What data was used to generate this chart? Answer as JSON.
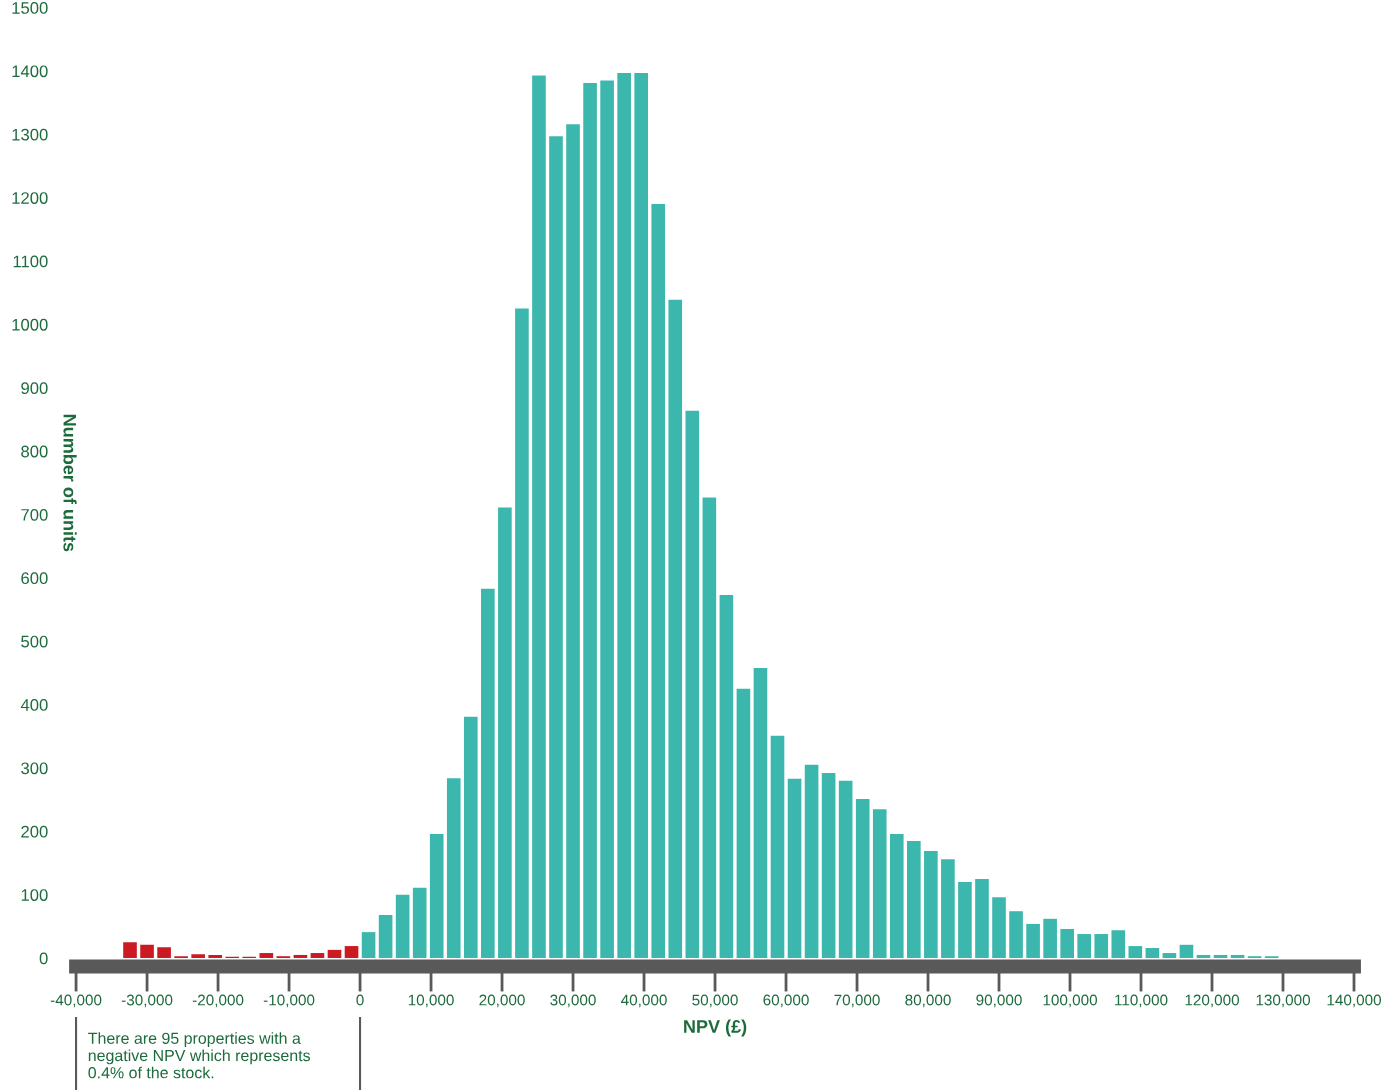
{
  "chart_data": {
    "type": "histogram",
    "xlabel": "NPV (£)",
    "ylabel": "Number of units",
    "bins": [
      -33600,
      -31200,
      -28800,
      -26400,
      -24000,
      -21600,
      -19200,
      -16800,
      -14400,
      -12000,
      -9600,
      -7200,
      -4800,
      -2400,
      0,
      2400,
      4800,
      7200,
      9600,
      12000,
      14400,
      16800,
      19200,
      21600,
      24000,
      26400,
      28800,
      31200,
      33600,
      36000,
      38400,
      40800,
      43200,
      45600,
      48000,
      50400,
      52800,
      55200,
      57600,
      60000,
      62400,
      64800,
      67200,
      69600,
      72000,
      74400,
      76800,
      79200,
      81600,
      84000,
      86400,
      88800,
      91200,
      93600,
      96000,
      98400,
      100800,
      103200,
      105600,
      108000,
      110400,
      112800,
      115200,
      117600,
      120000,
      122400,
      124800,
      127200,
      129600
    ],
    "values": [
      25,
      21,
      17,
      3,
      6,
      5,
      2,
      2,
      8,
      3,
      5,
      8,
      13,
      19,
      41,
      68,
      100,
      111,
      196,
      284,
      381,
      583,
      711,
      1025,
      1393,
      1297,
      1316,
      1381,
      1385,
      1397,
      1397,
      1190,
      1039,
      864,
      727,
      573,
      425,
      458,
      351,
      283,
      305,
      292,
      280,
      251,
      235,
      196,
      185,
      169,
      156,
      120,
      125,
      96,
      74,
      54,
      62,
      46,
      38,
      38,
      44,
      19,
      16,
      8,
      21,
      5,
      5,
      5,
      3,
      3
    ],
    "colors": [
      "#cc1a22",
      "#cc1a22",
      "#cc1a22",
      "#cc1a22",
      "#cc1a22",
      "#cc1a22",
      "#cc1a22",
      "#cc1a22",
      "#cc1a22",
      "#cc1a22",
      "#cc1a22",
      "#cc1a22",
      "#cc1a22",
      "#cc1a22",
      "#3cb7ae",
      "#3cb7ae",
      "#3cb7ae",
      "#3cb7ae",
      "#3cb7ae",
      "#3cb7ae",
      "#3cb7ae",
      "#3cb7ae",
      "#3cb7ae",
      "#3cb7ae",
      "#3cb7ae",
      "#3cb7ae",
      "#3cb7ae",
      "#3cb7ae",
      "#3cb7ae",
      "#3cb7ae",
      "#3cb7ae",
      "#3cb7ae",
      "#3cb7ae",
      "#3cb7ae",
      "#3cb7ae",
      "#3cb7ae",
      "#3cb7ae",
      "#3cb7ae",
      "#3cb7ae",
      "#3cb7ae",
      "#3cb7ae",
      "#3cb7ae",
      "#3cb7ae",
      "#3cb7ae",
      "#3cb7ae",
      "#3cb7ae",
      "#3cb7ae",
      "#3cb7ae",
      "#3cb7ae",
      "#3cb7ae",
      "#3cb7ae",
      "#3cb7ae",
      "#3cb7ae",
      "#3cb7ae",
      "#3cb7ae",
      "#3cb7ae",
      "#3cb7ae",
      "#3cb7ae",
      "#3cb7ae",
      "#3cb7ae",
      "#3cb7ae",
      "#3cb7ae",
      "#3cb7ae",
      "#3cb7ae",
      "#3cb7ae",
      "#3cb7ae",
      "#3cb7ae",
      "#3cb7ae"
    ],
    "xlim": [
      -40000,
      140000
    ],
    "xticks": [
      {
        "value": -40000,
        "label": "-40,000"
      },
      {
        "value": -30000,
        "label": "-30,000"
      },
      {
        "value": -20000,
        "label": "-20,000"
      },
      {
        "value": -10000,
        "label": "-10,000"
      },
      0,
      {
        "value": 10000,
        "label": "10,000"
      },
      {
        "value": 20000,
        "label": "20,000"
      },
      {
        "value": 30000,
        "label": "30,000"
      },
      {
        "value": 40000,
        "label": "40,000"
      },
      {
        "value": 50000,
        "label": "50,000"
      },
      {
        "value": 60000,
        "label": "60,000"
      },
      {
        "value": 70000,
        "label": "70,000"
      },
      {
        "value": 80000,
        "label": "80,000"
      },
      {
        "value": 90000,
        "label": "90,000"
      },
      {
        "value": 100000,
        "label": "100,000"
      },
      {
        "value": 110000,
        "label": "110,000"
      },
      {
        "value": 120000,
        "label": "120,000"
      },
      {
        "value": 130000,
        "label": "130,000"
      },
      {
        "value": 140000,
        "label": "140,000"
      }
    ],
    "ylim": [
      0,
      1500
    ],
    "yticks": [
      0,
      100,
      200,
      300,
      400,
      500,
      600,
      700,
      800,
      900,
      1000,
      1100,
      1200,
      1300,
      1400,
      1500
    ],
    "grid": false,
    "legend": false,
    "annotations": [
      "There are 95 properties with a negative NPV which represents 0.4% of the stock."
    ]
  }
}
